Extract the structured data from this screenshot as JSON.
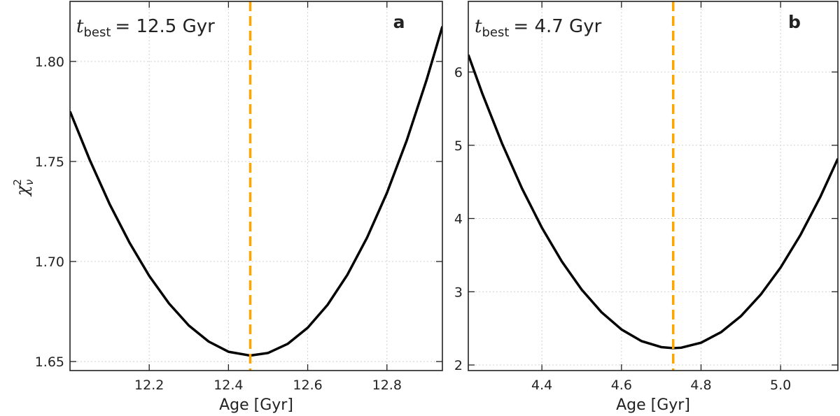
{
  "chart_data": [
    {
      "type": "line",
      "panel_label": "a",
      "annotation": {
        "symbol": "t",
        "subscript": "best",
        "text": "= 12.5 Gyr"
      },
      "xlabel": "Age [Gyr]",
      "ylabel": {
        "symbol": "χ",
        "superscript": "2",
        "subscript": "ν"
      },
      "x": [
        12.0,
        12.05,
        12.1,
        12.15,
        12.2,
        12.25,
        12.3,
        12.35,
        12.4,
        12.455,
        12.5,
        12.55,
        12.6,
        12.65,
        12.7,
        12.75,
        12.8,
        12.85,
        12.9,
        12.94
      ],
      "series": [
        {
          "color": "#000000",
          "values": [
            1.775,
            1.7507,
            1.7287,
            1.7095,
            1.6928,
            1.679,
            1.668,
            1.66,
            1.6549,
            1.653,
            1.6543,
            1.6589,
            1.6669,
            1.6783,
            1.6933,
            1.712,
            1.7343,
            1.7605,
            1.7907,
            1.8175
          ]
        }
      ],
      "vline": {
        "x": 12.455,
        "color": "#ffa500"
      },
      "xlim": [
        12.0,
        12.94
      ],
      "ylim": [
        1.6455,
        1.83
      ],
      "xticks": [
        12.2,
        12.4,
        12.6,
        12.8
      ],
      "yticks": [
        {
          "value": 1.65,
          "label": "1.65"
        },
        {
          "value": 1.7,
          "label": "1.70"
        },
        1.75,
        {
          "value": 1.8,
          "label": "1.80"
        }
      ],
      "grid": true
    },
    {
      "type": "line",
      "panel_label": "b",
      "annotation": {
        "symbol": "t",
        "subscript": "best",
        "text": "= 4.7 Gyr"
      },
      "xlabel": "Age [Gyr]",
      "x": [
        4.215,
        4.25,
        4.3,
        4.35,
        4.4,
        4.45,
        4.5,
        4.55,
        4.6,
        4.65,
        4.7,
        4.73,
        4.75,
        4.8,
        4.85,
        4.9,
        4.95,
        5.0,
        5.05,
        5.1,
        5.144
      ],
      "series": [
        {
          "color": "#000000",
          "values": [
            6.235,
            5.709,
            5.022,
            4.41,
            3.874,
            3.414,
            3.029,
            2.719,
            2.485,
            2.327,
            2.244,
            2.23,
            2.236,
            2.304,
            2.447,
            2.666,
            2.961,
            3.331,
            3.776,
            4.297,
            4.818
          ]
        }
      ],
      "vline": {
        "x": 4.73,
        "color": "#ffa500"
      },
      "xlim": [
        4.215,
        5.144
      ],
      "ylim": [
        1.924,
        6.964
      ],
      "xticks": [
        4.4,
        4.6,
        4.8,
        {
          "value": 5.0,
          "label": "5.0"
        }
      ],
      "yticks": [
        2,
        3,
        4,
        5,
        6
      ],
      "grid": true
    }
  ]
}
